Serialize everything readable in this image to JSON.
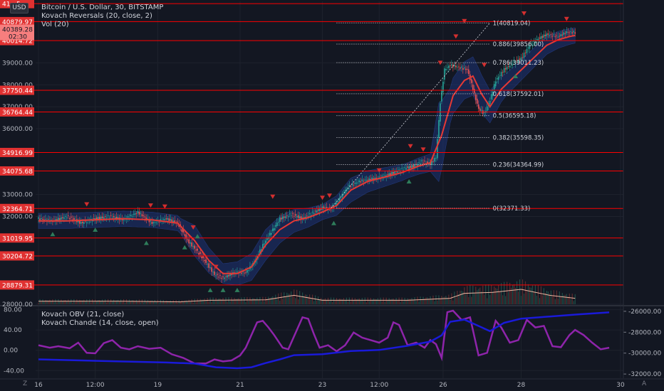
{
  "header": {
    "currency_button": "USD",
    "main_title": "Bitcoin / U.S. Dollar, 30, BITSTAMP",
    "indicator_1": "Kovach Reversals (20, close, 2)",
    "indicator_2": "Vol (20)"
  },
  "lower_pane": {
    "indicator_1": "Kovach OBV (21, close)",
    "indicator_2": "Kovach Chande (14, close, open)"
  },
  "icons": {
    "bottom_left": "Z",
    "bottom_right": "A"
  },
  "colors": {
    "background": "#131722",
    "grid": "#1e222d",
    "candle_up": "#26a69a",
    "candle_down": "#ef5350",
    "ma_line": "#e53935",
    "band_fill": "#1e3a8a",
    "level_line": "#ff0000",
    "obv_line": "#1a1ad9",
    "chande_line": "#8e24aa",
    "volume_ma": "#f0b5a0",
    "marker_up": "#2e7d5b",
    "marker_down": "#d32f2f"
  },
  "chart_data": {
    "type": "candlestick",
    "symbol": "Bitcoin / U.S. Dollar",
    "interval": "30",
    "exchange": "BITSTAMP",
    "x_ticks": [
      "16",
      "12:00",
      "19",
      "21",
      "23",
      "12:00",
      "26",
      "28",
      "30"
    ],
    "x_tick_index": [
      0,
      40,
      84,
      142,
      200,
      240,
      285,
      340,
      410
    ],
    "x_range": [
      -2,
      412
    ],
    "y_range": [
      28000,
      41800
    ],
    "y_ticks": [
      "39000.00",
      "38000.00",
      "37000.00",
      "36000.00",
      "33000.00",
      "32000.00",
      "28000.00"
    ],
    "y_tick_values": [
      39000,
      38000,
      37000,
      36000,
      33000,
      32000,
      28000
    ],
    "current_price": "40389.28",
    "countdown": "02:30",
    "top_price_label_partial": "41...5",
    "horizontal_levels": [
      {
        "value": 41700,
        "label": ""
      },
      {
        "value": 40879.97,
        "label": "40879.97"
      },
      {
        "value": 40014.72,
        "label": "40014.72"
      },
      {
        "value": 37750.44,
        "label": "37750.44"
      },
      {
        "value": 36764.44,
        "label": "36764.44"
      },
      {
        "value": 34916.99,
        "label": "34916.99"
      },
      {
        "value": 34075.68,
        "label": "34075.68"
      },
      {
        "value": 32364.71,
        "label": "32364.71"
      },
      {
        "value": 31019.95,
        "label": "31019.95"
      },
      {
        "value": 30204.72,
        "label": "30204.72"
      },
      {
        "value": 28879.31,
        "label": "28879.31"
      }
    ],
    "fib_levels": [
      {
        "ratio": "1",
        "value": 40819.04,
        "label": "1(40819.04)"
      },
      {
        "ratio": "0.886",
        "value": 39856.0,
        "label": "0.886(39856.00)"
      },
      {
        "ratio": "0.786",
        "value": 39011.23,
        "label": "0.786(39011.23)"
      },
      {
        "ratio": "0.618",
        "value": 37592.01,
        "label": "0.618(37592.01)"
      },
      {
        "ratio": "0.5",
        "value": 36595.18,
        "label": "0.5(36595.18)"
      },
      {
        "ratio": "0.382",
        "value": 35598.35,
        "label": "0.382(35598.35)"
      },
      {
        "ratio": "0.236",
        "value": 34364.99,
        "label": "0.236(34364.99)"
      },
      {
        "ratio": "0",
        "value": 32371.33,
        "label": "0(32371.33)"
      }
    ],
    "fib_x_range": [
      210,
      318
    ],
    "trend_line": {
      "from": [
        206,
        32371.33
      ],
      "to": [
        318,
        40819.04
      ]
    },
    "price_path": [
      [
        0,
        31900
      ],
      [
        10,
        31800
      ],
      [
        20,
        32000
      ],
      [
        30,
        31700
      ],
      [
        40,
        31900
      ],
      [
        50,
        32000
      ],
      [
        60,
        31850
      ],
      [
        70,
        32200
      ],
      [
        80,
        31700
      ],
      [
        90,
        31900
      ],
      [
        98,
        31700
      ],
      [
        105,
        30900
      ],
      [
        112,
        30400
      ],
      [
        118,
        29900
      ],
      [
        124,
        29350
      ],
      [
        130,
        29200
      ],
      [
        138,
        29450
      ],
      [
        146,
        29450
      ],
      [
        152,
        29900
      ],
      [
        158,
        30700
      ],
      [
        164,
        31300
      ],
      [
        170,
        31900
      ],
      [
        178,
        32100
      ],
      [
        186,
        31900
      ],
      [
        194,
        32200
      ],
      [
        200,
        32400
      ],
      [
        206,
        32350
      ],
      [
        212,
        32800
      ],
      [
        218,
        33350
      ],
      [
        226,
        33600
      ],
      [
        234,
        33700
      ],
      [
        242,
        33800
      ],
      [
        250,
        34000
      ],
      [
        258,
        34200
      ],
      [
        264,
        34300
      ],
      [
        270,
        34500
      ],
      [
        276,
        34400
      ],
      [
        280,
        34700
      ],
      [
        283,
        37200
      ],
      [
        286,
        38700
      ],
      [
        290,
        38900
      ],
      [
        296,
        38800
      ],
      [
        302,
        38700
      ],
      [
        306,
        37800
      ],
      [
        310,
        36900
      ],
      [
        314,
        36700
      ],
      [
        318,
        37300
      ],
      [
        322,
        38200
      ],
      [
        328,
        38700
      ],
      [
        334,
        39000
      ],
      [
        340,
        39200
      ],
      [
        346,
        39800
      ],
      [
        352,
        40100
      ],
      [
        358,
        40300
      ],
      [
        366,
        40200
      ],
      [
        372,
        40400
      ],
      [
        378,
        40389
      ]
    ],
    "ma_path": [
      [
        0,
        31800
      ],
      [
        20,
        31800
      ],
      [
        40,
        31850
      ],
      [
        60,
        31900
      ],
      [
        80,
        31850
      ],
      [
        98,
        31700
      ],
      [
        110,
        30900
      ],
      [
        120,
        30000
      ],
      [
        130,
        29400
      ],
      [
        140,
        29400
      ],
      [
        150,
        29700
      ],
      [
        160,
        30700
      ],
      [
        170,
        31400
      ],
      [
        180,
        31800
      ],
      [
        190,
        31950
      ],
      [
        200,
        32200
      ],
      [
        210,
        32500
      ],
      [
        220,
        33200
      ],
      [
        232,
        33600
      ],
      [
        244,
        33800
      ],
      [
        256,
        34000
      ],
      [
        268,
        34300
      ],
      [
        276,
        34450
      ],
      [
        284,
        35700
      ],
      [
        292,
        37500
      ],
      [
        300,
        38200
      ],
      [
        306,
        38400
      ],
      [
        312,
        37600
      ],
      [
        318,
        37000
      ],
      [
        326,
        37800
      ],
      [
        334,
        38300
      ],
      [
        342,
        38800
      ],
      [
        350,
        39300
      ],
      [
        358,
        39800
      ],
      [
        366,
        40050
      ],
      [
        374,
        40200
      ],
      [
        378,
        40250
      ]
    ],
    "band_width": [
      [
        0,
        350
      ],
      [
        100,
        350
      ],
      [
        110,
        700
      ],
      [
        130,
        450
      ],
      [
        160,
        700
      ],
      [
        200,
        350
      ],
      [
        220,
        550
      ],
      [
        260,
        350
      ],
      [
        276,
        400
      ],
      [
        282,
        1800
      ],
      [
        290,
        800
      ],
      [
        310,
        900
      ],
      [
        330,
        500
      ],
      [
        378,
        350
      ]
    ],
    "signals_down": [
      [
        34,
        32550
      ],
      [
        79,
        32500
      ],
      [
        89,
        32450
      ],
      [
        109,
        31500
      ],
      [
        125,
        29700
      ],
      [
        165,
        32900
      ],
      [
        200,
        32850
      ],
      [
        205,
        32950
      ],
      [
        240,
        34100
      ],
      [
        262,
        35200
      ],
      [
        271,
        35050
      ],
      [
        283,
        39000
      ],
      [
        294,
        40200
      ],
      [
        300,
        40900
      ],
      [
        314,
        38900
      ],
      [
        342,
        41250
      ],
      [
        372,
        41000
      ]
    ],
    "signals_up": [
      [
        10,
        31200
      ],
      [
        40,
        31400
      ],
      [
        76,
        30800
      ],
      [
        103,
        30600
      ],
      [
        112,
        31100
      ],
      [
        121,
        28650
      ],
      [
        130,
        28650
      ],
      [
        140,
        28650
      ],
      [
        208,
        31700
      ],
      [
        261,
        33600
      ],
      [
        336,
        38400
      ]
    ],
    "volume_ma_path": [
      [
        0,
        0.15
      ],
      [
        60,
        0.15
      ],
      [
        100,
        0.12
      ],
      [
        120,
        0.2
      ],
      [
        160,
        0.22
      ],
      [
        180,
        0.45
      ],
      [
        200,
        0.2
      ],
      [
        260,
        0.2
      ],
      [
        290,
        0.3
      ],
      [
        300,
        0.55
      ],
      [
        320,
        0.6
      ],
      [
        340,
        0.75
      ],
      [
        360,
        0.45
      ],
      [
        378,
        0.3
      ]
    ],
    "lower_left_ticks": [
      "80.00",
      "40.00",
      "0.00",
      "-40.00"
    ],
    "lower_left_values": [
      80,
      40,
      0,
      -40
    ],
    "lower_left_range": [
      -55,
      85
    ],
    "lower_right_ticks": [
      "-26000.00",
      "-28000.00",
      "-30000.00",
      "-32000.00"
    ],
    "lower_right_values": [
      -26000,
      -28000,
      -30000,
      -32000
    ],
    "lower_right_range": [
      -32400,
      -25600
    ],
    "chande_path": [
      [
        0,
        10
      ],
      [
        8,
        5
      ],
      [
        14,
        8
      ],
      [
        22,
        4
      ],
      [
        28,
        15
      ],
      [
        34,
        -5
      ],
      [
        40,
        -6
      ],
      [
        46,
        14
      ],
      [
        52,
        20
      ],
      [
        58,
        5
      ],
      [
        64,
        2
      ],
      [
        70,
        8
      ],
      [
        78,
        3
      ],
      [
        86,
        5
      ],
      [
        94,
        -8
      ],
      [
        102,
        -15
      ],
      [
        110,
        -26
      ],
      [
        118,
        -26
      ],
      [
        124,
        -18
      ],
      [
        130,
        -22
      ],
      [
        136,
        -20
      ],
      [
        142,
        -10
      ],
      [
        146,
        5
      ],
      [
        150,
        30
      ],
      [
        154,
        55
      ],
      [
        158,
        58
      ],
      [
        162,
        45
      ],
      [
        166,
        30
      ],
      [
        172,
        5
      ],
      [
        176,
        2
      ],
      [
        182,
        40
      ],
      [
        186,
        65
      ],
      [
        190,
        62
      ],
      [
        194,
        32
      ],
      [
        198,
        5
      ],
      [
        204,
        10
      ],
      [
        210,
        -2
      ],
      [
        216,
        10
      ],
      [
        222,
        35
      ],
      [
        228,
        25
      ],
      [
        234,
        20
      ],
      [
        240,
        15
      ],
      [
        246,
        25
      ],
      [
        250,
        55
      ],
      [
        254,
        50
      ],
      [
        260,
        10
      ],
      [
        266,
        15
      ],
      [
        272,
        5
      ],
      [
        276,
        20
      ],
      [
        280,
        12
      ],
      [
        284,
        -15
      ],
      [
        288,
        75
      ],
      [
        292,
        78
      ],
      [
        298,
        60
      ],
      [
        304,
        65
      ],
      [
        310,
        -10
      ],
      [
        316,
        -5
      ],
      [
        322,
        58
      ],
      [
        326,
        45
      ],
      [
        332,
        15
      ],
      [
        338,
        20
      ],
      [
        344,
        60
      ],
      [
        350,
        45
      ],
      [
        356,
        48
      ],
      [
        362,
        8
      ],
      [
        368,
        6
      ],
      [
        374,
        30
      ],
      [
        378,
        40
      ],
      [
        384,
        30
      ],
      [
        390,
        15
      ],
      [
        396,
        2
      ],
      [
        402,
        5
      ]
    ],
    "obv_path": [
      [
        0,
        -30600
      ],
      [
        30,
        -30700
      ],
      [
        60,
        -30800
      ],
      [
        90,
        -30900
      ],
      [
        110,
        -31000
      ],
      [
        125,
        -31350
      ],
      [
        140,
        -31450
      ],
      [
        150,
        -31350
      ],
      [
        160,
        -30950
      ],
      [
        170,
        -30600
      ],
      [
        180,
        -30200
      ],
      [
        200,
        -30100
      ],
      [
        220,
        -29800
      ],
      [
        240,
        -29700
      ],
      [
        260,
        -29300
      ],
      [
        276,
        -28900
      ],
      [
        284,
        -28300
      ],
      [
        290,
        -27000
      ],
      [
        300,
        -26800
      ],
      [
        310,
        -27400
      ],
      [
        318,
        -27900
      ],
      [
        328,
        -27100
      ],
      [
        340,
        -26700
      ],
      [
        360,
        -26500
      ],
      [
        380,
        -26300
      ],
      [
        402,
        -26100
      ]
    ]
  }
}
